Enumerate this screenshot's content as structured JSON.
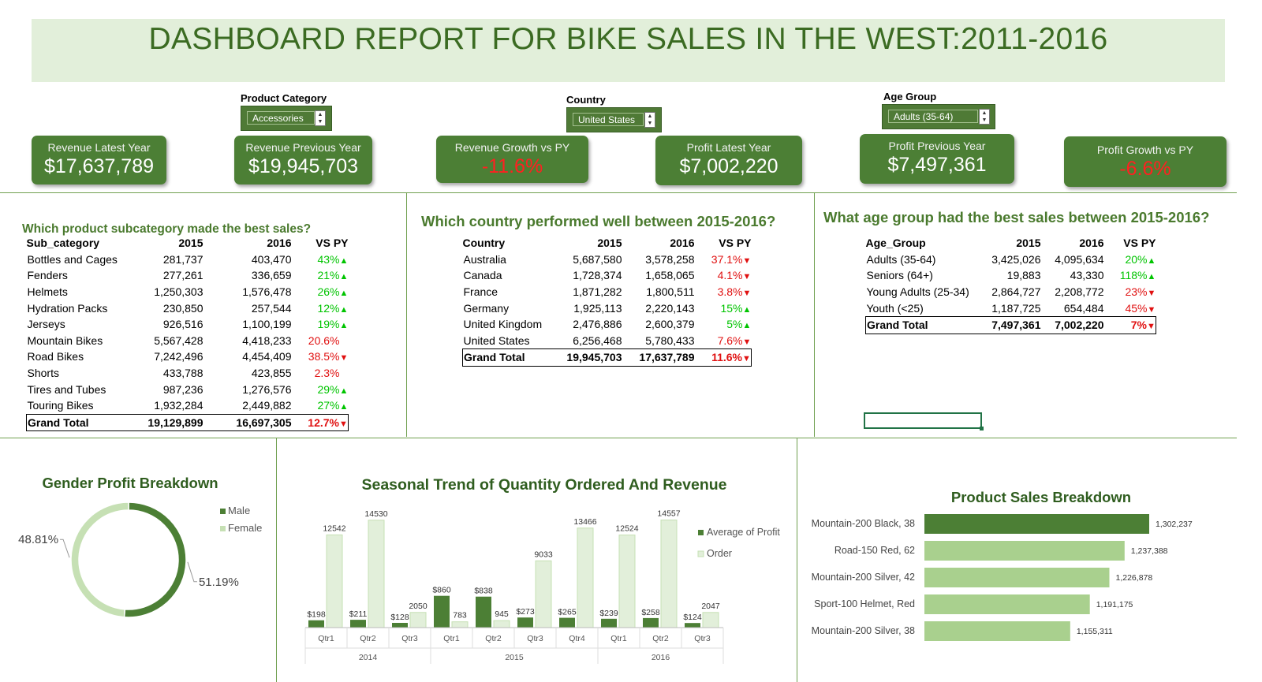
{
  "header": {
    "title": "DASHBOARD REPORT FOR BIKE SALES IN THE WEST:2011-2016"
  },
  "slicers": [
    {
      "label": "Product Category",
      "value": "Accessories"
    },
    {
      "label": "Country",
      "value": "United States"
    },
    {
      "label": "Age Group",
      "value": "Adults (35-64)"
    }
  ],
  "kpis": [
    {
      "label": "Revenue Latest Year",
      "value": "$17,637,789",
      "negative": false
    },
    {
      "label": "Revenue Previous Year",
      "value": "$19,945,703",
      "negative": false
    },
    {
      "label": "Revenue Growth vs PY",
      "value": "-11.6%",
      "negative": true
    },
    {
      "label": "Profit Latest Year",
      "value": "$7,002,220",
      "negative": false
    },
    {
      "label": "Profit Previous Year",
      "value": "$7,497,361",
      "negative": false
    },
    {
      "label": "Profit Growth vs PY",
      "value": "-6.6%",
      "negative": true
    }
  ],
  "subcategory_table": {
    "title": "Which product subcategory made the best sales?",
    "headers": [
      "Sub_category",
      "2015",
      "2016",
      "VS PY"
    ],
    "rows": [
      [
        "Bottles and Cages",
        "281,737",
        "403,470",
        "43%",
        "up"
      ],
      [
        "Fenders",
        "277,261",
        "336,659",
        "21%",
        "up"
      ],
      [
        "Helmets",
        "1,250,303",
        "1,576,478",
        "26%",
        "up"
      ],
      [
        "Hydration Packs",
        "230,850",
        "257,544",
        "12%",
        "up"
      ],
      [
        "Jerseys",
        "926,516",
        "1,100,199",
        "19%",
        "up"
      ],
      [
        "Mountain Bikes",
        "5,567,428",
        "4,418,233",
        "20.6%",
        "down-noarrow"
      ],
      [
        "Road Bikes",
        "7,242,496",
        "4,454,409",
        "38.5%",
        "down"
      ],
      [
        "Shorts",
        "433,788",
        "423,855",
        "2.3%",
        "down-noarrow"
      ],
      [
        "Tires and Tubes",
        "987,236",
        "1,276,576",
        "29%",
        "up"
      ],
      [
        "Touring Bikes",
        "1,932,284",
        "2,449,882",
        "27%",
        "up"
      ]
    ],
    "total": [
      "Grand Total",
      "19,129,899",
      "16,697,305",
      "12.7%",
      "down"
    ]
  },
  "country_table": {
    "title": "Which country performed well between 2015-2016?",
    "headers": [
      "Country",
      "2015",
      "2016",
      "VS PY"
    ],
    "rows": [
      [
        "Australia",
        "5,687,580",
        "3,578,258",
        "37.1%",
        "down"
      ],
      [
        "Canada",
        "1,728,374",
        "1,658,065",
        "4.1%",
        "down"
      ],
      [
        "France",
        "1,871,282",
        "1,800,511",
        "3.8%",
        "down"
      ],
      [
        "Germany",
        "1,925,113",
        "2,220,143",
        "15%",
        "up"
      ],
      [
        "United Kingdom",
        "2,476,886",
        "2,600,379",
        "5%",
        "up"
      ],
      [
        "United States",
        "6,256,468",
        "5,780,433",
        "7.6%",
        "down"
      ]
    ],
    "total": [
      "Grand Total",
      "19,945,703",
      "17,637,789",
      "11.6%",
      "down"
    ]
  },
  "age_table": {
    "title": "What age group had the best sales between 2015-2016?",
    "headers": [
      "Age_Group",
      "2015",
      "2016",
      "VS PY"
    ],
    "rows": [
      [
        "Adults (35-64)",
        "3,425,026",
        "4,095,634",
        "20%",
        "up"
      ],
      [
        "Seniors (64+)",
        "19,883",
        "43,330",
        "118%",
        "up"
      ],
      [
        "Young Adults (25-34)",
        "2,864,727",
        "2,208,772",
        "23%",
        "down"
      ],
      [
        "Youth (<25)",
        "1,187,725",
        "654,484",
        "45%",
        "down"
      ]
    ],
    "total": [
      "Grand Total",
      "7,497,361",
      "7,002,220",
      "7%",
      "down"
    ]
  },
  "colors": {
    "dark_green": "#4c7f35",
    "light_green": "#c6e0b4",
    "bar_light": "#a9d08e",
    "title_green": "#3b6b22",
    "up": "#00c400",
    "down": "#e01010"
  },
  "chart_data": [
    {
      "type": "pie",
      "variant": "donut",
      "title": "Gender Profit Breakdown",
      "categories": [
        "Male",
        "Female"
      ],
      "values": [
        51.19,
        48.81
      ],
      "labels": [
        "51.19%",
        "48.81%"
      ],
      "legend": "right"
    },
    {
      "type": "bar",
      "title": "Seasonal Trend of Quantity Ordered And Revenue",
      "groups": [
        {
          "year": "2014",
          "quarters": [
            "Qtr1",
            "Qtr2",
            "Qtr3"
          ]
        },
        {
          "year": "2015",
          "quarters": [
            "Qtr1",
            "Qtr2",
            "Qtr3",
            "Qtr4"
          ]
        },
        {
          "year": "2016",
          "quarters": [
            "Qtr1",
            "Qtr2",
            "Qtr3"
          ]
        }
      ],
      "series": [
        {
          "name": "Average of Profit",
          "values": [
            198,
            211,
            128,
            860,
            838,
            273,
            265,
            239,
            258,
            124
          ],
          "labels": [
            "$198",
            "$211",
            "$128",
            "$860",
            "$838",
            "$273",
            "$265",
            "$239",
            "$258",
            "$124"
          ]
        },
        {
          "name": "Order",
          "values": [
            12542,
            14530,
            2050,
            783,
            945,
            9033,
            13466,
            12524,
            14557,
            2047
          ],
          "labels": [
            "12542",
            "14530",
            "2050",
            "783",
            "945",
            "9033",
            "13466",
            "12524",
            "14557",
            "2047"
          ]
        }
      ],
      "legend": "right"
    },
    {
      "type": "bar",
      "orientation": "horizontal",
      "title": "Product Sales Breakdown",
      "categories": [
        "Mountain-200 Black, 38",
        "Road-150 Red, 62",
        "Mountain-200 Silver, 42",
        "Sport-100 Helmet, Red",
        "Mountain-200 Silver, 38"
      ],
      "values": [
        1302237,
        1237388,
        1226878,
        1191175,
        1155311
      ],
      "labels": [
        "1,302,237",
        "1,237,388",
        "1,226,878",
        "1,191,175",
        "1,155,311"
      ]
    }
  ]
}
